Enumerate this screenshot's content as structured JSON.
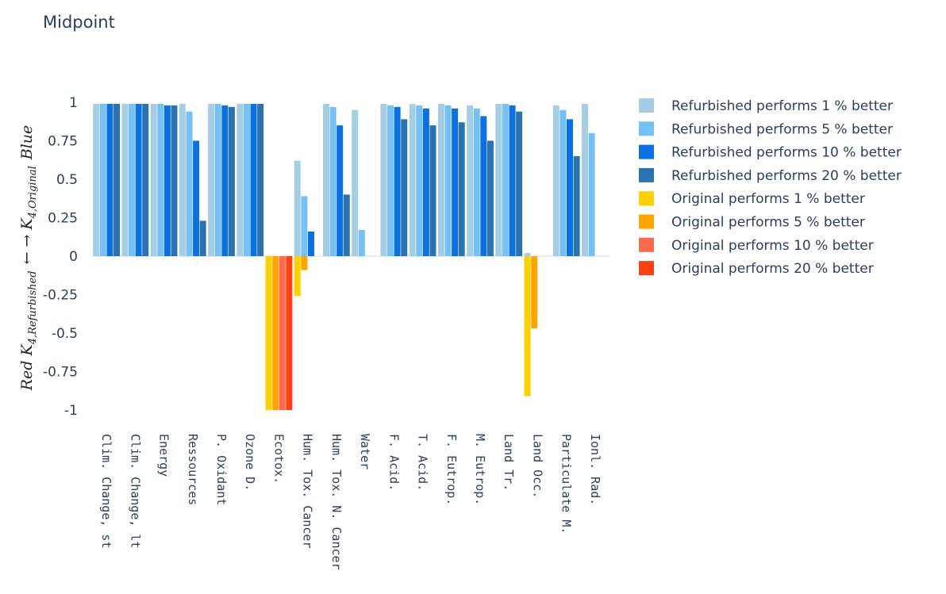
{
  "chart_data": {
    "type": "bar",
    "title": "Midpoint",
    "ylabel": {
      "parts": [
        {
          "text": "Red ",
          "sub": ""
        },
        {
          "text": "K",
          "sub": "4,Refurbished"
        },
        {
          "text": " ← → ",
          "sub": ""
        },
        {
          "text": "K",
          "sub": "4,Original"
        },
        {
          "text": " Blue",
          "sub": ""
        }
      ]
    },
    "ylim": [
      -1,
      1
    ],
    "yticks": [
      {
        "value": 1,
        "label": "1"
      },
      {
        "value": 0.75,
        "label": "0.75"
      },
      {
        "value": 0.5,
        "label": "0.5"
      },
      {
        "value": 0.25,
        "label": "0.25"
      },
      {
        "value": 0,
        "label": "0"
      },
      {
        "value": -0.25,
        "label": "-0.25"
      },
      {
        "value": -0.5,
        "label": "-0.5"
      },
      {
        "value": -0.75,
        "label": "-0.75"
      },
      {
        "value": -1,
        "label": "-1"
      }
    ],
    "categories": [
      "Clim. Change, st",
      "Clim. Change, lt",
      "Energy",
      "Ressources",
      "P. Oxidant",
      "Ozone D.",
      "Ecotox.",
      "Hum. Tox. Cancer",
      "Hum. Tox. N. Cancer",
      "Water",
      "F. Acid.",
      "T. Acid.",
      "F. Eutrop.",
      "M. Eutrop.",
      "Land Tr.",
      "Land Occ.",
      "Particulate M.",
      "Ionl. Rad."
    ],
    "series": [
      {
        "name": "Refurbished performs 1 % better",
        "color": "#a6cee3",
        "values": [
          0.99,
          0.99,
          0.99,
          0.99,
          0.99,
          0.99,
          0,
          0.62,
          0.99,
          0.95,
          0.99,
          0.99,
          0.99,
          0.98,
          0.99,
          0.02,
          0.98,
          0.99
        ]
      },
      {
        "name": "Refurbished performs 5 % better",
        "color": "#75c0f5",
        "values": [
          0.99,
          0.99,
          0.99,
          0.94,
          0.99,
          0.99,
          0,
          0.39,
          0.97,
          0.17,
          0.98,
          0.98,
          0.98,
          0.96,
          0.99,
          0,
          0.95,
          0.8
        ]
      },
      {
        "name": "Refurbished performs 10 % better",
        "color": "#0b71e3",
        "values": [
          0.99,
          0.99,
          0.98,
          0.75,
          0.98,
          0.99,
          0,
          0.16,
          0.85,
          0,
          0.97,
          0.96,
          0.96,
          0.91,
          0.98,
          0,
          0.89,
          0
        ]
      },
      {
        "name": "Refurbished performs 20 % better",
        "color": "#2b73b0",
        "values": [
          0.99,
          0.99,
          0.98,
          0.23,
          0.97,
          0.99,
          0,
          0,
          0.4,
          0,
          0.89,
          0.85,
          0.87,
          0.75,
          0.94,
          0,
          0.65,
          0
        ]
      },
      {
        "name": "Original performs 1 % better",
        "color": "#ffd000",
        "values": [
          0,
          0,
          0,
          0,
          0,
          0,
          -1,
          -0.26,
          0,
          0,
          0,
          0,
          0,
          0,
          0,
          -0.91,
          0,
          0
        ]
      },
      {
        "name": "Original performs 5 % better",
        "color": "#ffa500",
        "values": [
          0,
          0,
          0,
          0,
          0,
          0,
          -1,
          -0.09,
          0,
          0,
          0,
          0,
          0,
          0,
          0,
          -0.47,
          0,
          0
        ]
      },
      {
        "name": "Original performs 10 % better",
        "color": "#ff6a4d",
        "values": [
          0,
          0,
          0,
          0,
          0,
          0,
          -1,
          0,
          0,
          0,
          0,
          0,
          0,
          0,
          0,
          0,
          0,
          0
        ]
      },
      {
        "name": "Original performs 20 % better",
        "color": "#ff4010",
        "values": [
          0,
          0,
          0,
          0,
          0,
          0,
          -1,
          0,
          0,
          0,
          0,
          0,
          0,
          0,
          0,
          0,
          0,
          0
        ]
      }
    ],
    "draw_order": [
      [
        0,
        4
      ],
      [
        1,
        5
      ],
      [
        2,
        6
      ],
      [
        3,
        7
      ]
    ],
    "grid": false,
    "legend_position": "right"
  }
}
